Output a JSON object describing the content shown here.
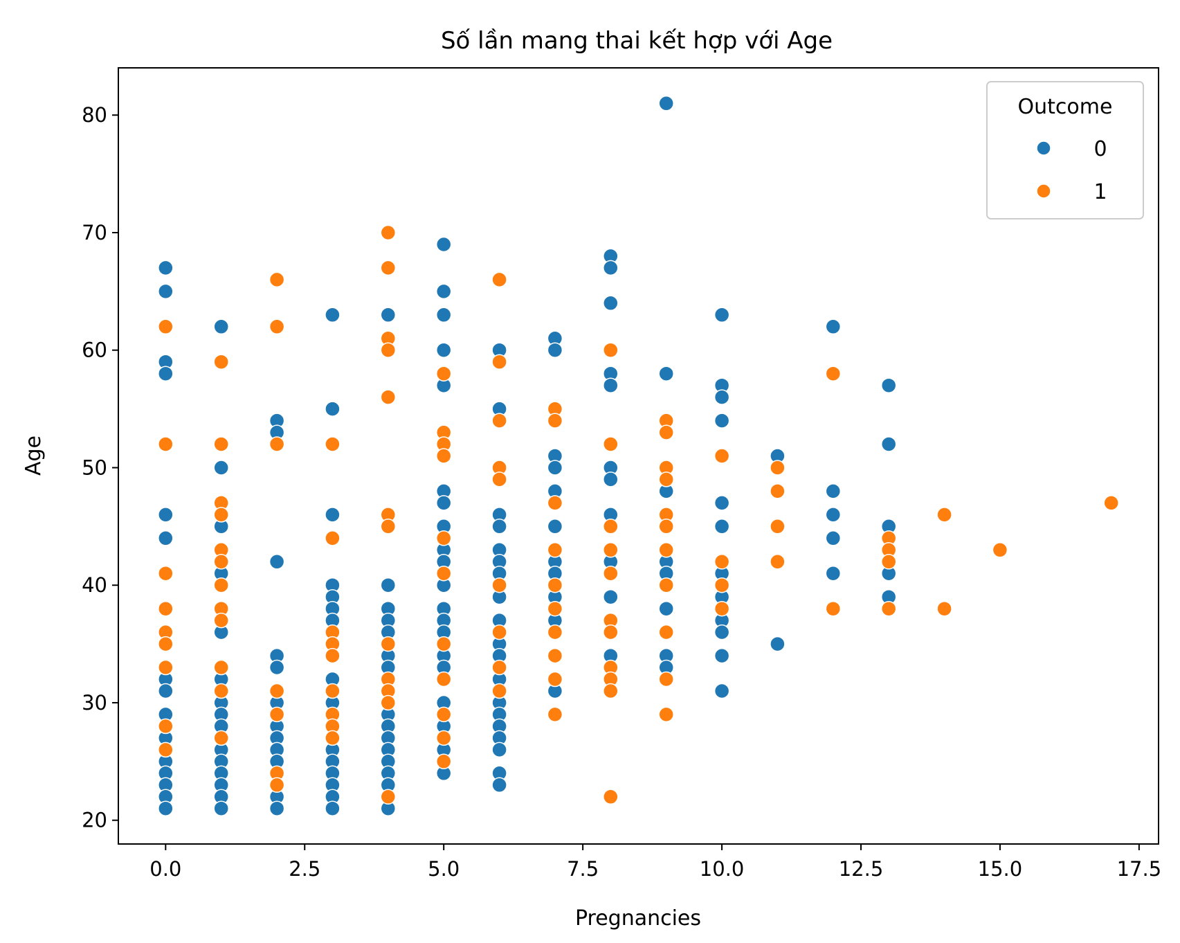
{
  "chart_data": {
    "type": "scatter",
    "title": "Số lần mang thai kết hợp với Age",
    "xlabel": "Pregnancies",
    "ylabel": "Age",
    "xlim": [
      -0.85,
      17.85
    ],
    "ylim": [
      17.98,
      84.02
    ],
    "x_ticks": [
      0.0,
      2.5,
      5.0,
      7.5,
      10.0,
      12.5,
      15.0,
      17.5
    ],
    "x_tick_labels": [
      "0.0",
      "2.5",
      "5.0",
      "7.5",
      "10.0",
      "12.5",
      "15.0",
      "17.5"
    ],
    "y_ticks": [
      20,
      30,
      40,
      50,
      60,
      70,
      80
    ],
    "y_tick_labels": [
      "20",
      "30",
      "40",
      "50",
      "60",
      "70",
      "80"
    ],
    "grid": false,
    "legend": {
      "title": "Outcome",
      "placement": "top-right"
    },
    "series": [
      {
        "name": "0",
        "color": "#1f77b4",
        "points": [
          [
            0,
            67
          ],
          [
            0,
            65
          ],
          [
            0,
            59
          ],
          [
            0,
            58
          ],
          [
            0,
            46
          ],
          [
            0,
            44
          ],
          [
            0,
            32
          ],
          [
            0,
            31
          ],
          [
            0,
            29
          ],
          [
            0,
            27
          ],
          [
            0,
            25
          ],
          [
            0,
            24
          ],
          [
            0,
            23
          ],
          [
            0,
            22
          ],
          [
            0,
            21
          ],
          [
            1,
            62
          ],
          [
            1,
            50
          ],
          [
            1,
            45
          ],
          [
            1,
            41
          ],
          [
            1,
            36
          ],
          [
            1,
            32
          ],
          [
            1,
            30
          ],
          [
            1,
            29
          ],
          [
            1,
            28
          ],
          [
            1,
            26
          ],
          [
            1,
            25
          ],
          [
            1,
            24
          ],
          [
            1,
            23
          ],
          [
            1,
            22
          ],
          [
            1,
            21
          ],
          [
            2,
            54
          ],
          [
            2,
            53
          ],
          [
            2,
            42
          ],
          [
            2,
            34
          ],
          [
            2,
            33
          ],
          [
            2,
            30
          ],
          [
            2,
            28
          ],
          [
            2,
            27
          ],
          [
            2,
            26
          ],
          [
            2,
            25
          ],
          [
            2,
            22
          ],
          [
            2,
            21
          ],
          [
            3,
            63
          ],
          [
            3,
            55
          ],
          [
            3,
            46
          ],
          [
            3,
            40
          ],
          [
            3,
            39
          ],
          [
            3,
            38
          ],
          [
            3,
            37
          ],
          [
            3,
            32
          ],
          [
            3,
            30
          ],
          [
            3,
            26
          ],
          [
            3,
            25
          ],
          [
            3,
            24
          ],
          [
            3,
            23
          ],
          [
            3,
            22
          ],
          [
            3,
            21
          ],
          [
            4,
            63
          ],
          [
            4,
            40
          ],
          [
            4,
            38
          ],
          [
            4,
            37
          ],
          [
            4,
            36
          ],
          [
            4,
            34
          ],
          [
            4,
            33
          ],
          [
            4,
            29
          ],
          [
            4,
            28
          ],
          [
            4,
            27
          ],
          [
            4,
            26
          ],
          [
            4,
            25
          ],
          [
            4,
            24
          ],
          [
            4,
            23
          ],
          [
            4,
            21
          ],
          [
            5,
            69
          ],
          [
            5,
            65
          ],
          [
            5,
            63
          ],
          [
            5,
            60
          ],
          [
            5,
            57
          ],
          [
            5,
            48
          ],
          [
            5,
            47
          ],
          [
            5,
            45
          ],
          [
            5,
            43
          ],
          [
            5,
            42
          ],
          [
            5,
            40
          ],
          [
            5,
            38
          ],
          [
            5,
            37
          ],
          [
            5,
            36
          ],
          [
            5,
            34
          ],
          [
            5,
            33
          ],
          [
            5,
            30
          ],
          [
            5,
            28
          ],
          [
            5,
            26
          ],
          [
            5,
            24
          ],
          [
            6,
            60
          ],
          [
            6,
            55
          ],
          [
            6,
            46
          ],
          [
            6,
            45
          ],
          [
            6,
            43
          ],
          [
            6,
            42
          ],
          [
            6,
            41
          ],
          [
            6,
            39
          ],
          [
            6,
            37
          ],
          [
            6,
            35
          ],
          [
            6,
            34
          ],
          [
            6,
            32
          ],
          [
            6,
            30
          ],
          [
            6,
            29
          ],
          [
            6,
            28
          ],
          [
            6,
            27
          ],
          [
            6,
            26
          ],
          [
            6,
            24
          ],
          [
            6,
            23
          ],
          [
            7,
            61
          ],
          [
            7,
            60
          ],
          [
            7,
            51
          ],
          [
            7,
            50
          ],
          [
            7,
            48
          ],
          [
            7,
            45
          ],
          [
            7,
            42
          ],
          [
            7,
            41
          ],
          [
            7,
            39
          ],
          [
            7,
            37
          ],
          [
            7,
            31
          ],
          [
            8,
            68
          ],
          [
            8,
            67
          ],
          [
            8,
            64
          ],
          [
            8,
            58
          ],
          [
            8,
            57
          ],
          [
            8,
            50
          ],
          [
            8,
            49
          ],
          [
            8,
            46
          ],
          [
            8,
            42
          ],
          [
            8,
            39
          ],
          [
            8,
            34
          ],
          [
            9,
            81
          ],
          [
            9,
            58
          ],
          [
            9,
            48
          ],
          [
            9,
            42
          ],
          [
            9,
            41
          ],
          [
            9,
            38
          ],
          [
            9,
            34
          ],
          [
            9,
            33
          ],
          [
            10,
            63
          ],
          [
            10,
            57
          ],
          [
            10,
            56
          ],
          [
            10,
            54
          ],
          [
            10,
            47
          ],
          [
            10,
            45
          ],
          [
            10,
            41
          ],
          [
            10,
            39
          ],
          [
            10,
            37
          ],
          [
            10,
            36
          ],
          [
            10,
            34
          ],
          [
            10,
            31
          ],
          [
            11,
            51
          ],
          [
            11,
            35
          ],
          [
            12,
            62
          ],
          [
            12,
            48
          ],
          [
            12,
            46
          ],
          [
            12,
            44
          ],
          [
            12,
            41
          ],
          [
            13,
            57
          ],
          [
            13,
            52
          ],
          [
            13,
            45
          ],
          [
            13,
            41
          ],
          [
            13,
            39
          ]
        ]
      },
      {
        "name": "1",
        "color": "#ff7f0e",
        "points": [
          [
            0,
            62
          ],
          [
            0,
            52
          ],
          [
            0,
            41
          ],
          [
            0,
            38
          ],
          [
            0,
            36
          ],
          [
            0,
            35
          ],
          [
            0,
            33
          ],
          [
            0,
            28
          ],
          [
            0,
            26
          ],
          [
            1,
            59
          ],
          [
            1,
            52
          ],
          [
            1,
            47
          ],
          [
            1,
            46
          ],
          [
            1,
            43
          ],
          [
            1,
            42
          ],
          [
            1,
            40
          ],
          [
            1,
            38
          ],
          [
            1,
            37
          ],
          [
            1,
            33
          ],
          [
            1,
            31
          ],
          [
            1,
            27
          ],
          [
            2,
            66
          ],
          [
            2,
            62
          ],
          [
            2,
            52
          ],
          [
            2,
            31
          ],
          [
            2,
            29
          ],
          [
            2,
            24
          ],
          [
            2,
            23
          ],
          [
            3,
            52
          ],
          [
            3,
            44
          ],
          [
            3,
            36
          ],
          [
            3,
            35
          ],
          [
            3,
            34
          ],
          [
            3,
            31
          ],
          [
            3,
            29
          ],
          [
            3,
            28
          ],
          [
            3,
            27
          ],
          [
            4,
            70
          ],
          [
            4,
            67
          ],
          [
            4,
            61
          ],
          [
            4,
            60
          ],
          [
            4,
            56
          ],
          [
            4,
            46
          ],
          [
            4,
            45
          ],
          [
            4,
            35
          ],
          [
            4,
            32
          ],
          [
            4,
            31
          ],
          [
            4,
            30
          ],
          [
            4,
            22
          ],
          [
            5,
            58
          ],
          [
            5,
            53
          ],
          [
            5,
            52
          ],
          [
            5,
            51
          ],
          [
            5,
            44
          ],
          [
            5,
            41
          ],
          [
            5,
            35
          ],
          [
            5,
            32
          ],
          [
            5,
            29
          ],
          [
            5,
            27
          ],
          [
            5,
            25
          ],
          [
            6,
            66
          ],
          [
            6,
            59
          ],
          [
            6,
            54
          ],
          [
            6,
            50
          ],
          [
            6,
            49
          ],
          [
            6,
            40
          ],
          [
            6,
            36
          ],
          [
            6,
            33
          ],
          [
            6,
            31
          ],
          [
            7,
            55
          ],
          [
            7,
            54
          ],
          [
            7,
            47
          ],
          [
            7,
            43
          ],
          [
            7,
            40
          ],
          [
            7,
            38
          ],
          [
            7,
            36
          ],
          [
            7,
            34
          ],
          [
            7,
            32
          ],
          [
            7,
            29
          ],
          [
            8,
            60
          ],
          [
            8,
            52
          ],
          [
            8,
            45
          ],
          [
            8,
            43
          ],
          [
            8,
            41
          ],
          [
            8,
            37
          ],
          [
            8,
            36
          ],
          [
            8,
            33
          ],
          [
            8,
            32
          ],
          [
            8,
            31
          ],
          [
            8,
            22
          ],
          [
            9,
            54
          ],
          [
            9,
            53
          ],
          [
            9,
            50
          ],
          [
            9,
            49
          ],
          [
            9,
            46
          ],
          [
            9,
            45
          ],
          [
            9,
            43
          ],
          [
            9,
            40
          ],
          [
            9,
            36
          ],
          [
            9,
            32
          ],
          [
            9,
            29
          ],
          [
            10,
            51
          ],
          [
            10,
            42
          ],
          [
            10,
            40
          ],
          [
            10,
            38
          ],
          [
            11,
            50
          ],
          [
            11,
            48
          ],
          [
            11,
            45
          ],
          [
            11,
            42
          ],
          [
            12,
            58
          ],
          [
            12,
            38
          ],
          [
            13,
            44
          ],
          [
            13,
            43
          ],
          [
            13,
            42
          ],
          [
            13,
            38
          ],
          [
            14,
            46
          ],
          [
            14,
            38
          ],
          [
            15,
            43
          ],
          [
            17,
            47
          ]
        ]
      }
    ]
  }
}
